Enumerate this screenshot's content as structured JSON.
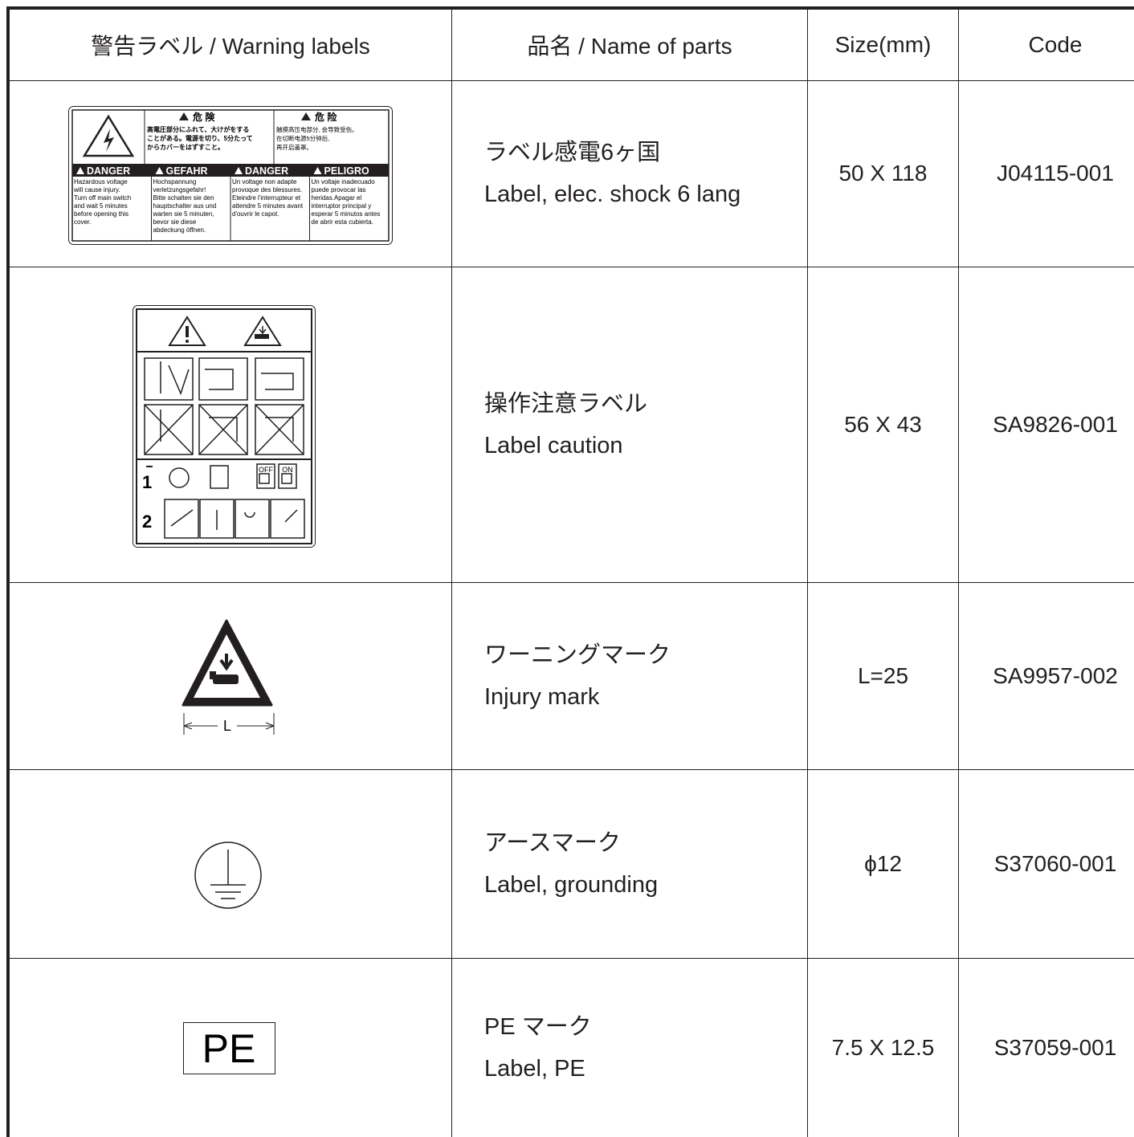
{
  "table": {
    "header": [
      "警告ラベル / Warning labels",
      "品名 / Name of parts",
      "Size(mm)",
      "Code"
    ],
    "rows": [
      {
        "name_ja": "ラベル感電6ヶ国",
        "name_en": "Label, elec. shock 6 lang",
        "size": "50 X 118",
        "code": "J04115-001",
        "label": {
          "ja_title": "危 険",
          "zh_title": "危 险",
          "ja_text": [
            "高電圧部分にふれて、大けがをする",
            "ことがある。電源を切り、5分たって",
            "からカバーをはずすこと。"
          ],
          "zh_text": [
            "触摸高压电部分, 会导致受伤。",
            "在切断电源5分钟后,",
            "再开启盖罩。"
          ],
          "headers": [
            "DANGER",
            "GEFAHR",
            "DANGER",
            "PELIGRO"
          ],
          "texts": [
            [
              "Hazardous voltage",
              "will cause injury.",
              "Turn off main switch",
              "and wait 5 minutes",
              "before opening this",
              "cover."
            ],
            [
              "Hochspannung",
              "verletzungsgefahr!",
              "Bitte schalten sie den",
              "hauptschalter aus und",
              "warten sie 5 minuten,",
              "bevor sie diese",
              "abdeckung öffnen."
            ],
            [
              "Un voltage non adapte",
              "provoque des blessures.",
              "Eteindre l'interrupteur et",
              "attendre 5 minutes avant",
              "d'ouvrir le capot."
            ],
            [
              "Un voltaje inadecuado",
              "puede provocar las",
              "heridas.Apagar el",
              "interruptor principal y",
              "esperar 5 minutos antes",
              "de abrir esta cubierta."
            ]
          ]
        }
      },
      {
        "name_ja": "操作注意ラベル",
        "name_en": "Label caution",
        "size": "56 X 43",
        "code": "SA9826-001",
        "label": {
          "steps": [
            "1",
            "2"
          ],
          "switch": [
            "OFF",
            "ON"
          ]
        }
      },
      {
        "name_ja": "ワーニングマーク",
        "name_en": "Injury mark",
        "size": "L=25",
        "code": "SA9957-002",
        "label": {
          "dimension": "L"
        }
      },
      {
        "name_ja": "アースマーク",
        "name_en": "Label, grounding",
        "size": "ϕ12",
        "code": "S37060-001"
      },
      {
        "name_ja": "PE マーク",
        "name_en": "Label, PE",
        "size": "7.5 X 12.5",
        "code": "S37059-001",
        "label": {
          "text": "PE"
        }
      }
    ]
  }
}
